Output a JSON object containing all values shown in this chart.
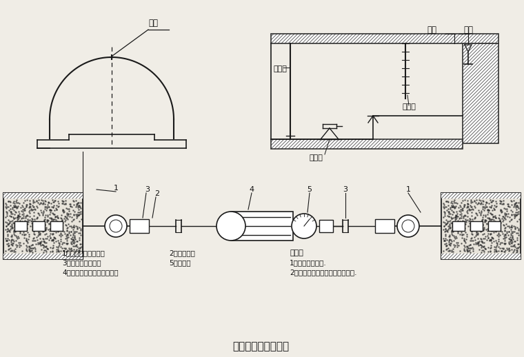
{
  "title": "主要量测方法示意图",
  "bg_color": "#f0ede6",
  "line_color": "#1a1a1a",
  "text_color": "#111111",
  "labels": {
    "top_left_label": "测点",
    "top_right_1": "转点",
    "top_right_2": "测点",
    "level_instrument": "水平仪",
    "leveling_rod": "水准尺",
    "staff_gauge": "倒塔尺",
    "note_title": "说明：",
    "note1": "1、洞内观察未述.",
    "note2": "2、其它量测项目按有关说明实施.",
    "legend1_l": "1、净空变位仪矩锚杆",
    "legend1_r": "2、带孔钢尺",
    "legend2_l": "3、有球铰的连接杆",
    "legend2_r": "5、百分表",
    "legend3": "4、维持张拉倒尺拉力的装置",
    "num1_left": "1",
    "num3_left": "3",
    "num2": "2",
    "num4": "4",
    "num5": "5",
    "num3_right": "3",
    "num1_right": "1"
  }
}
